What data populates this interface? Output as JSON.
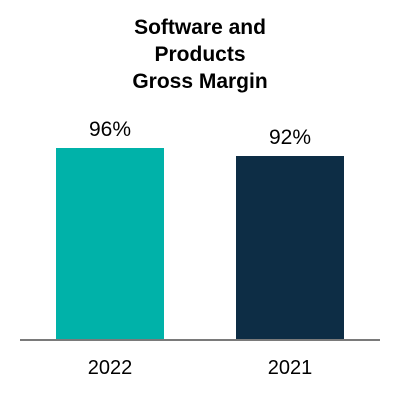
{
  "chart_data": {
    "type": "bar",
    "title_lines": [
      "Software and",
      "Products",
      "Gross Margin"
    ],
    "categories": [
      "2022",
      "2021"
    ],
    "values": [
      96,
      92
    ],
    "value_labels": [
      "96%",
      "92%"
    ],
    "bar_colors": [
      "#00b2a9",
      "#0d2d45"
    ],
    "axis_color": "#7a7a7a",
    "xlabel": "",
    "ylabel": "",
    "grid": false,
    "legend": "none"
  }
}
